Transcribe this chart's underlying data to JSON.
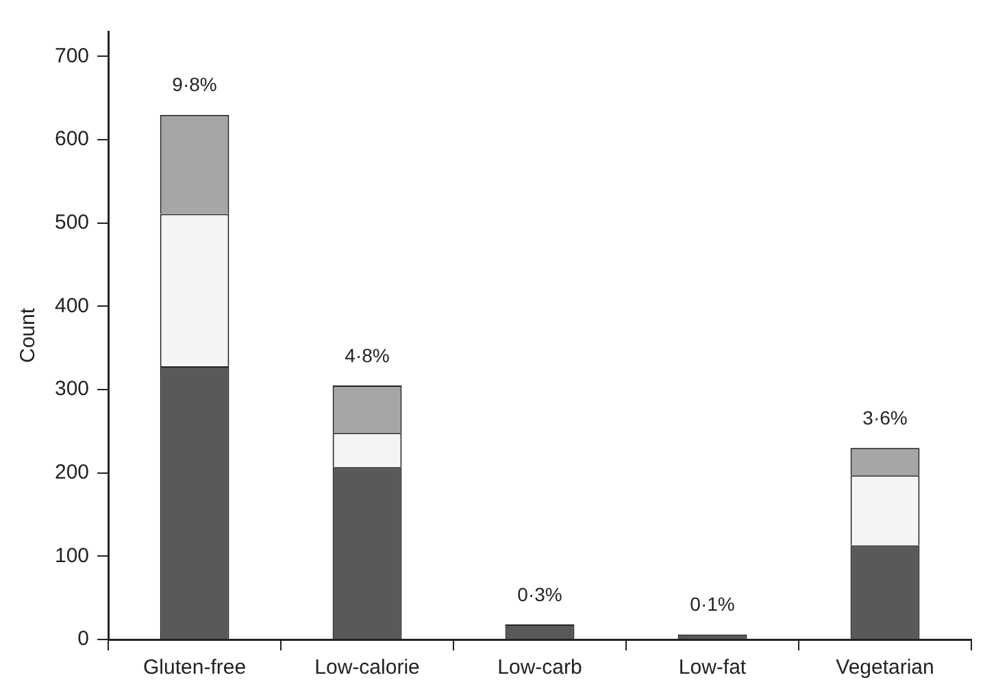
{
  "chart_data": {
    "type": "bar",
    "ylabel": "Count",
    "categories": [
      "Gluten-free",
      "Low-calorie",
      "Low-carb",
      "Low-fat",
      "Vegetarian"
    ],
    "stacked": true,
    "series": [
      {
        "color": "#595959",
        "values": [
          328,
          207,
          18,
          6,
          113
        ]
      },
      {
        "color": "#f4f4f4",
        "values": [
          183,
          41,
          0,
          0,
          84
        ]
      },
      {
        "color": "#a6a6a6",
        "values": [
          119,
          57,
          0,
          0,
          33
        ]
      }
    ],
    "ylim": [
      0,
      730
    ],
    "yticks": [
      0,
      100,
      200,
      300,
      400,
      500,
      600,
      700
    ],
    "grid": false,
    "legend": false,
    "annotations": [
      {
        "text": "9·8%",
        "x": "Gluten-free",
        "y": 630
      },
      {
        "text": "4·8%",
        "x": "Low-calorie",
        "y": 305
      },
      {
        "text": "0·3%",
        "x": "Low-carb",
        "y": 18
      },
      {
        "text": "0·1%",
        "x": "Low-fat",
        "y": 6
      },
      {
        "text": "3·6%",
        "x": "Vegetarian",
        "y": 230
      }
    ]
  }
}
